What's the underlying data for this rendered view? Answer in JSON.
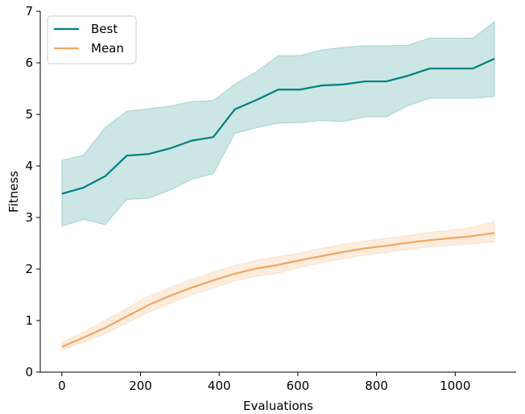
{
  "chart_data": {
    "type": "line",
    "title": "",
    "xlabel": "Evaluations",
    "ylabel": "Fitness",
    "xlim": [
      -55,
      1155
    ],
    "ylim": [
      0,
      7
    ],
    "xticks": [
      0,
      200,
      400,
      600,
      800,
      1000
    ],
    "yticks": [
      0,
      1,
      2,
      3,
      4,
      5,
      6,
      7
    ],
    "grid": false,
    "legend_position": "top-left",
    "x": [
      0,
      55,
      110,
      165,
      220,
      275,
      330,
      385,
      440,
      495,
      550,
      605,
      660,
      715,
      770,
      825,
      880,
      935,
      990,
      1045,
      1100
    ],
    "series": [
      {
        "name": "Best",
        "color": "#007f7f",
        "values": [
          3.46,
          3.58,
          3.8,
          4.2,
          4.23,
          4.34,
          4.49,
          4.56,
          5.1,
          5.28,
          5.48,
          5.48,
          5.56,
          5.58,
          5.64,
          5.64,
          5.75,
          5.89,
          5.89,
          5.89,
          6.08
        ],
        "lower": [
          2.83,
          2.96,
          2.86,
          3.35,
          3.37,
          3.53,
          3.74,
          3.85,
          4.63,
          4.74,
          4.83,
          4.84,
          4.88,
          4.86,
          4.95,
          4.95,
          5.17,
          5.31,
          5.31,
          5.31,
          5.35
        ],
        "upper": [
          4.11,
          4.21,
          4.75,
          5.06,
          5.11,
          5.16,
          5.25,
          5.27,
          5.59,
          5.83,
          6.14,
          6.14,
          6.25,
          6.3,
          6.33,
          6.33,
          6.34,
          6.48,
          6.48,
          6.48,
          6.8
        ]
      },
      {
        "name": "Mean",
        "color": "#f4a460",
        "values": [
          0.49,
          0.67,
          0.86,
          1.08,
          1.3,
          1.48,
          1.64,
          1.78,
          1.91,
          2.01,
          2.08,
          2.17,
          2.25,
          2.33,
          2.4,
          2.45,
          2.51,
          2.56,
          2.6,
          2.64,
          2.7
        ],
        "lower": [
          0.44,
          0.58,
          0.74,
          0.95,
          1.16,
          1.33,
          1.5,
          1.63,
          1.77,
          1.86,
          1.92,
          2.03,
          2.12,
          2.2,
          2.27,
          2.32,
          2.38,
          2.43,
          2.46,
          2.49,
          2.53
        ],
        "upper": [
          0.57,
          0.78,
          1.0,
          1.24,
          1.47,
          1.64,
          1.8,
          1.94,
          2.07,
          2.17,
          2.24,
          2.31,
          2.4,
          2.48,
          2.54,
          2.6,
          2.65,
          2.71,
          2.75,
          2.81,
          2.92
        ]
      }
    ]
  }
}
